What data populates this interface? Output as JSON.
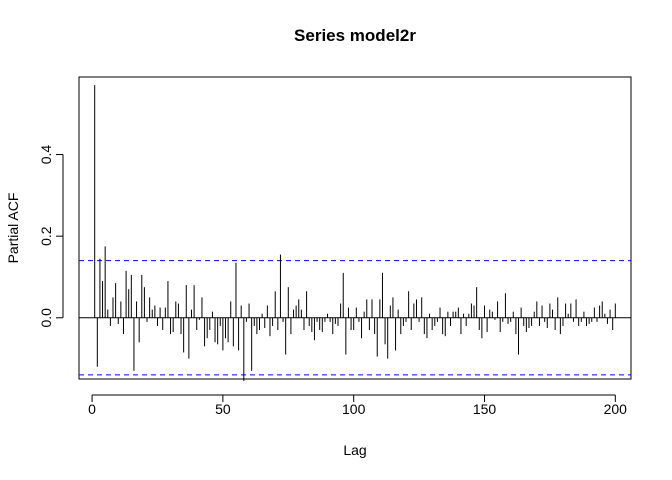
{
  "chart_data": {
    "type": "bar",
    "subtype": "partial-acf",
    "title": "Series  model2r",
    "xlabel": "Lag",
    "ylabel": "Partial ACF",
    "xlim": [
      -5,
      206
    ],
    "ylim": [
      -0.15,
      0.59
    ],
    "xticks": [
      0,
      50,
      100,
      150,
      200
    ],
    "xtick_labels": [
      "0",
      "50",
      "100",
      "150",
      "200"
    ],
    "yticks": [
      0.0,
      0.2,
      0.4
    ],
    "ytick_labels": [
      "0.0",
      "0.2",
      "0.4"
    ],
    "confidence_bound": 0.14,
    "bound_color": "#0000ff",
    "bar_color": "#000000",
    "grid": false,
    "legend": "none",
    "lags": [
      1,
      2,
      3,
      4,
      5,
      6,
      7,
      8,
      9,
      10,
      11,
      12,
      13,
      14,
      15,
      16,
      17,
      18,
      19,
      20,
      21,
      22,
      23,
      24,
      25,
      26,
      27,
      28,
      29,
      30,
      31,
      32,
      33,
      34,
      35,
      36,
      37,
      38,
      39,
      40,
      41,
      42,
      43,
      44,
      45,
      46,
      47,
      48,
      49,
      50,
      51,
      52,
      53,
      54,
      55,
      56,
      57,
      58,
      59,
      60,
      61,
      62,
      63,
      64,
      65,
      66,
      67,
      68,
      69,
      70,
      71,
      72,
      73,
      74,
      75,
      76,
      77,
      78,
      79,
      80,
      81,
      82,
      83,
      84,
      85,
      86,
      87,
      88,
      89,
      90,
      91,
      92,
      93,
      94,
      95,
      96,
      97,
      98,
      99,
      100,
      101,
      102,
      103,
      104,
      105,
      106,
      107,
      108,
      109,
      110,
      111,
      112,
      113,
      114,
      115,
      116,
      117,
      118,
      119,
      120,
      121,
      122,
      123,
      124,
      125,
      126,
      127,
      128,
      129,
      130,
      131,
      132,
      133,
      134,
      135,
      136,
      137,
      138,
      139,
      140,
      141,
      142,
      143,
      144,
      145,
      146,
      147,
      148,
      149,
      150,
      151,
      152,
      153,
      154,
      155,
      156,
      157,
      158,
      159,
      160,
      161,
      162,
      163,
      164,
      165,
      166,
      167,
      168,
      169,
      170,
      171,
      172,
      173,
      174,
      175,
      176,
      177,
      178,
      179,
      180,
      181,
      182,
      183,
      184,
      185,
      186,
      187,
      188,
      189,
      190,
      191,
      192,
      193,
      194,
      195,
      196,
      197,
      198,
      199,
      200
    ],
    "values": [
      0.57,
      -0.12,
      0.145,
      0.09,
      0.175,
      0.02,
      -0.02,
      0.05,
      0.085,
      -0.015,
      0.04,
      -0.04,
      0.115,
      0.07,
      0.105,
      -0.13,
      0.04,
      -0.06,
      0.105,
      0.075,
      -0.01,
      0.05,
      0.02,
      0.03,
      -0.02,
      0.025,
      -0.03,
      0.025,
      0.09,
      -0.04,
      -0.035,
      0.04,
      0.035,
      -0.04,
      -0.085,
      0.08,
      -0.1,
      0.02,
      0.08,
      -0.03,
      -0.005,
      0.05,
      -0.07,
      -0.05,
      -0.03,
      0.015,
      -0.06,
      -0.065,
      -0.02,
      -0.08,
      -0.05,
      -0.06,
      0.04,
      -0.07,
      0.135,
      -0.08,
      0.03,
      -0.155,
      -0.01,
      0.035,
      -0.13,
      -0.02,
      -0.04,
      -0.03,
      0.01,
      -0.025,
      0.03,
      -0.045,
      -0.02,
      0.065,
      -0.03,
      0.155,
      -0.01,
      -0.09,
      0.075,
      -0.04,
      0.02,
      0.03,
      0.045,
      0.02,
      -0.03,
      0.065,
      -0.02,
      -0.035,
      -0.055,
      -0.01,
      -0.03,
      -0.035,
      -0.01,
      0.01,
      -0.01,
      -0.04,
      -0.015,
      -0.02,
      0.035,
      0.11,
      -0.09,
      0.025,
      -0.03,
      -0.03,
      0.025,
      -0.01,
      -0.05,
      0.015,
      0.045,
      -0.03,
      0.045,
      -0.04,
      -0.095,
      0.045,
      0.11,
      -0.065,
      -0.1,
      0.03,
      0.05,
      -0.08,
      0.02,
      -0.04,
      -0.02,
      -0.01,
      0.065,
      -0.03,
      0.035,
      0.045,
      -0.01,
      0.05,
      -0.04,
      -0.05,
      0.01,
      -0.03,
      -0.02,
      -0.01,
      0.025,
      -0.04,
      -0.045,
      0.015,
      -0.02,
      0.015,
      0.015,
      0.025,
      -0.04,
      0.01,
      -0.02,
      0.01,
      0.035,
      0.03,
      0.075,
      -0.03,
      -0.05,
      0.03,
      -0.035,
      0.02,
      0.015,
      -0.005,
      0.04,
      -0.035,
      -0.01,
      0.06,
      -0.015,
      -0.01,
      0.015,
      -0.04,
      -0.09,
      0.025,
      -0.02,
      -0.035,
      -0.025,
      -0.02,
      0.015,
      0.04,
      -0.02,
      0.03,
      -0.01,
      -0.025,
      0.035,
      0.02,
      -0.03,
      0.05,
      -0.04,
      -0.02,
      0.035,
      0.01,
      0.035,
      -0.01,
      0.045,
      -0.02,
      -0.01,
      0.015,
      -0.02,
      -0.015,
      -0.01,
      0.025,
      -0.01,
      0.03,
      0.04,
      0.01,
      -0.015,
      0.02,
      -0.03,
      0.035
    ]
  }
}
